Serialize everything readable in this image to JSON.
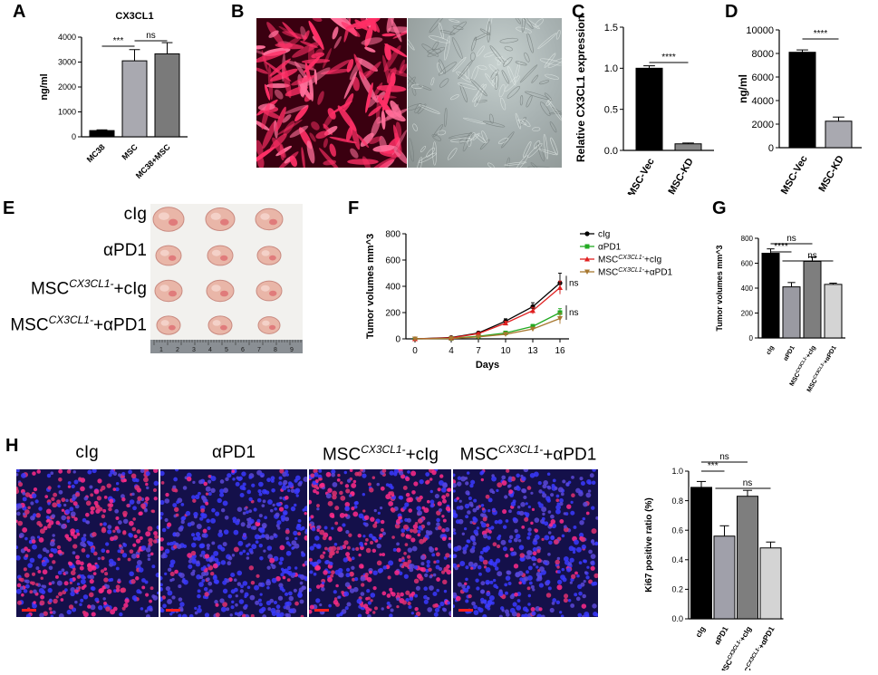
{
  "panels": {
    "A": "A",
    "B": "B",
    "C": "C",
    "D": "D",
    "E": "E",
    "F": "F",
    "G": "G",
    "H": "H"
  },
  "colors": {
    "black": "#000000",
    "gray1": "#a9a9b0",
    "gray2": "#7a7a7a",
    "gray3": "#d4d4d4",
    "red_fluor": "#e0205a",
    "blue_dapi": "#2a2ac8",
    "line_cig": "#000000",
    "line_apd1": "#22aa22",
    "line_msc_cig": "#e02020",
    "line_msc_apd1": "#a87830"
  },
  "chart_data": [
    {
      "id": "A",
      "type": "bar",
      "title": "CX3CL1",
      "ylabel": "ng/ml",
      "categories": [
        "MC38",
        "MSC",
        "MC38+MSC"
      ],
      "values": [
        250,
        3050,
        3330
      ],
      "errors": [
        30,
        450,
        450
      ],
      "ylim": [
        0,
        4000
      ],
      "yticks": [
        "0",
        "1000",
        "2000",
        "3000",
        "4000"
      ],
      "significance": [
        {
          "from": 0,
          "to": 1,
          "label": "***"
        },
        {
          "from": 1,
          "to": 2,
          "label": "ns"
        }
      ]
    },
    {
      "id": "C",
      "type": "bar",
      "title": "",
      "ylabel": "Relative CX3CL1 expression",
      "categories": [
        "MSC-Vec",
        "MSC-KD"
      ],
      "values": [
        1.0,
        0.08
      ],
      "errors": [
        0.03,
        0.01
      ],
      "ylim": [
        0,
        1.5
      ],
      "yticks": [
        "0.0",
        "0.5",
        "1.0",
        "1.5"
      ],
      "significance": [
        {
          "from": 0,
          "to": 1,
          "label": "****"
        }
      ]
    },
    {
      "id": "D",
      "type": "bar",
      "title": "",
      "ylabel": "ng/ml",
      "categories": [
        "MSC-Vec",
        "MSC-KD"
      ],
      "values": [
        8100,
        2250
      ],
      "errors": [
        200,
        350
      ],
      "ylim": [
        0,
        10000
      ],
      "yticks": [
        "0",
        "2000",
        "4000",
        "6000",
        "8000",
        "10000"
      ],
      "significance": [
        {
          "from": 0,
          "to": 1,
          "label": "****"
        }
      ]
    },
    {
      "id": "F",
      "type": "line",
      "title": "",
      "xlabel": "Days",
      "ylabel": "Tumor volumes mm^3",
      "x": [
        0,
        4,
        7,
        10,
        13,
        16
      ],
      "xticks": [
        "0",
        "4",
        "7",
        "10",
        "13",
        "16"
      ],
      "ylim": [
        0,
        800
      ],
      "yticks": [
        "0",
        "200",
        "400",
        "600",
        "800"
      ],
      "series": [
        {
          "name": "cIg",
          "values": [
            0,
            10,
            45,
            135,
            245,
            425
          ],
          "errors": [
            0,
            4,
            10,
            18,
            30,
            75
          ]
        },
        {
          "name": "αPD1",
          "values": [
            0,
            4,
            20,
            45,
            95,
            200
          ],
          "errors": [
            0,
            2,
            6,
            10,
            15,
            30
          ]
        },
        {
          "name": "MSC^CX3CL1-+cIg",
          "values": [
            0,
            8,
            40,
            120,
            215,
            390
          ],
          "errors": [
            0,
            4,
            8,
            15,
            25,
            50
          ]
        },
        {
          "name": "MSC^CX3CL1-+αPD1",
          "values": [
            0,
            3,
            15,
            35,
            75,
            155
          ],
          "errors": [
            0,
            2,
            5,
            8,
            12,
            40
          ]
        }
      ],
      "significance": [
        {
          "label": "ns"
        },
        {
          "label": "ns"
        }
      ]
    },
    {
      "id": "G",
      "type": "bar",
      "title": "",
      "ylabel": "Tumor volumes mm^3",
      "categories": [
        "cIg",
        "αPD1",
        "MSC^CX3CL1-+cIg",
        "MSC^CX3CL1-+αPD1"
      ],
      "values": [
        680,
        410,
        615,
        430
      ],
      "errors": [
        35,
        35,
        35,
        10
      ],
      "ylim": [
        0,
        800
      ],
      "yticks": [
        "0",
        "200",
        "400",
        "600",
        "800"
      ],
      "significance": [
        {
          "from": 0,
          "to": 2,
          "label": "ns"
        },
        {
          "from": 0,
          "to": 1,
          "label": "****"
        },
        {
          "from": 1,
          "to": 3,
          "label": "ns"
        }
      ]
    },
    {
      "id": "H_chart",
      "type": "bar",
      "title": "",
      "ylabel": "Ki67 positive ratio (%)",
      "categories": [
        "cIg",
        "αPD1",
        "MSC^CX3CL1-+cIg",
        "MSC^CX3CL1-+αPD1"
      ],
      "values": [
        0.89,
        0.56,
        0.83,
        0.48
      ],
      "errors": [
        0.04,
        0.07,
        0.04,
        0.04
      ],
      "ylim": [
        0,
        1.0
      ],
      "yticks": [
        "0.0",
        "0.2",
        "0.4",
        "0.6",
        "0.8",
        "1.0"
      ],
      "significance": [
        {
          "from": 0,
          "to": 2,
          "label": "ns"
        },
        {
          "from": 0,
          "to": 1,
          "label": "***"
        },
        {
          "from": 1,
          "to": 3,
          "label": "ns"
        }
      ]
    }
  ],
  "panelE": {
    "rows": [
      "cIg",
      "αPD1",
      "MSC",
      "MSC"
    ],
    "row_sup": [
      "",
      "",
      "CX3CL1-",
      "CX3CL1-"
    ],
    "row_suffix": [
      "",
      "",
      "+cIg",
      "+αPD1"
    ],
    "ruler_numbers": [
      "1",
      "2",
      "3",
      "4",
      "5",
      "6",
      "7",
      "8",
      "9"
    ]
  },
  "panelH": {
    "labels": [
      {
        "main": "cIg",
        "sup": "",
        "suffix": ""
      },
      {
        "main": "αPD1",
        "sup": "",
        "suffix": ""
      },
      {
        "main": "MSC",
        "sup": "CX3CL1-",
        "suffix": "+cIg"
      },
      {
        "main": "MSC",
        "sup": "CX3CL1-",
        "suffix": "+αPD1"
      }
    ]
  }
}
